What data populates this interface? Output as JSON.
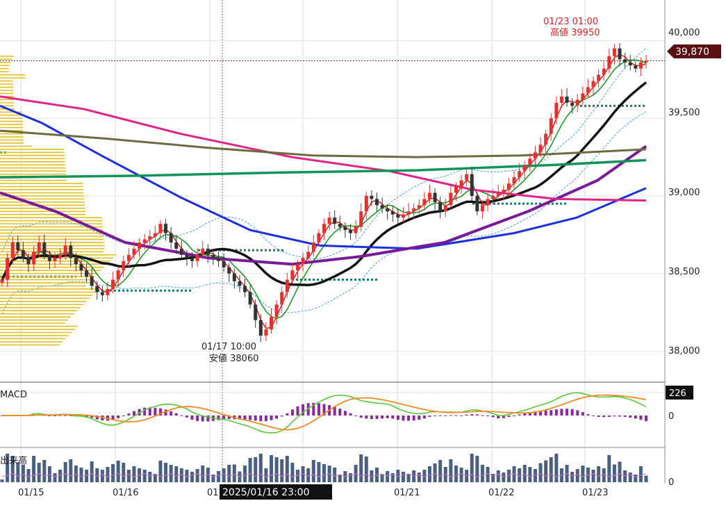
{
  "chart_data": {
    "type": "candlestick",
    "price_axis": {
      "ticks": [
        38000,
        38500,
        39000,
        39500,
        40000
      ],
      "tick_labels": [
        "38,000",
        "38,500",
        "39,000",
        "39,500",
        "40,000"
      ],
      "range": [
        37800,
        40150
      ]
    },
    "x_tick_labels": [
      "01/15",
      "01/16",
      "01",
      "01/21",
      "01/22",
      "01/23"
    ],
    "cursor_time": "2025/01/16 23:00",
    "current_price_label": "39,870",
    "current_price": 39870,
    "high_annotation": {
      "time": "01/23 01:00",
      "label": "高値 39950",
      "value": 39950
    },
    "low_annotation": {
      "time": "01/17 10:00",
      "label": "安値 38060",
      "value": 38060
    },
    "candles_close": [
      38460,
      38600,
      38700,
      38650,
      38600,
      38560,
      38640,
      38700,
      38620,
      38580,
      38600,
      38620,
      38680,
      38600,
      38560,
      38520,
      38480,
      38420,
      38380,
      38360,
      38400,
      38460,
      38520,
      38580,
      38620,
      38660,
      38700,
      38720,
      38740,
      38760,
      38820,
      38760,
      38700,
      38660,
      38620,
      38600,
      38580,
      38620,
      38660,
      38620,
      38600,
      38580,
      38540,
      38500,
      38450,
      38420,
      38380,
      38300,
      38200,
      38100,
      38140,
      38220,
      38300,
      38380,
      38460,
      38520,
      38560,
      38600,
      38640,
      38700,
      38760,
      38820,
      38860,
      38820,
      38800,
      38780,
      38760,
      38800,
      38900,
      39000,
      38980,
      38940,
      38920,
      38900,
      38880,
      38860,
      38880,
      38900,
      38920,
      38940,
      38980,
      39020,
      38960,
      38900,
      38940,
      39020,
      39060,
      39100,
      39140,
      39000,
      38900,
      38940,
      38980,
      39000,
      39020,
      39040,
      39080,
      39120,
      39160,
      39200,
      39240,
      39280,
      39330,
      39400,
      39500,
      39600,
      39640,
      39600,
      39580,
      39620,
      39660,
      39700,
      39740,
      39780,
      39820,
      39900,
      39950,
      39880,
      39860,
      39840,
      39820,
      39860,
      39870
    ],
    "indicators": {
      "moving_average_colors": [
        "#e02020",
        "#119911",
        "#111111",
        "#1a2fe0",
        "#7a1a9a",
        "#e0228a",
        "#6b6a40",
        "#12935a"
      ],
      "macd": {
        "label": "MACD",
        "value_label": "226",
        "zero_label": "0"
      },
      "volume": {
        "label": "出来高",
        "zero_label": "0"
      }
    }
  }
}
